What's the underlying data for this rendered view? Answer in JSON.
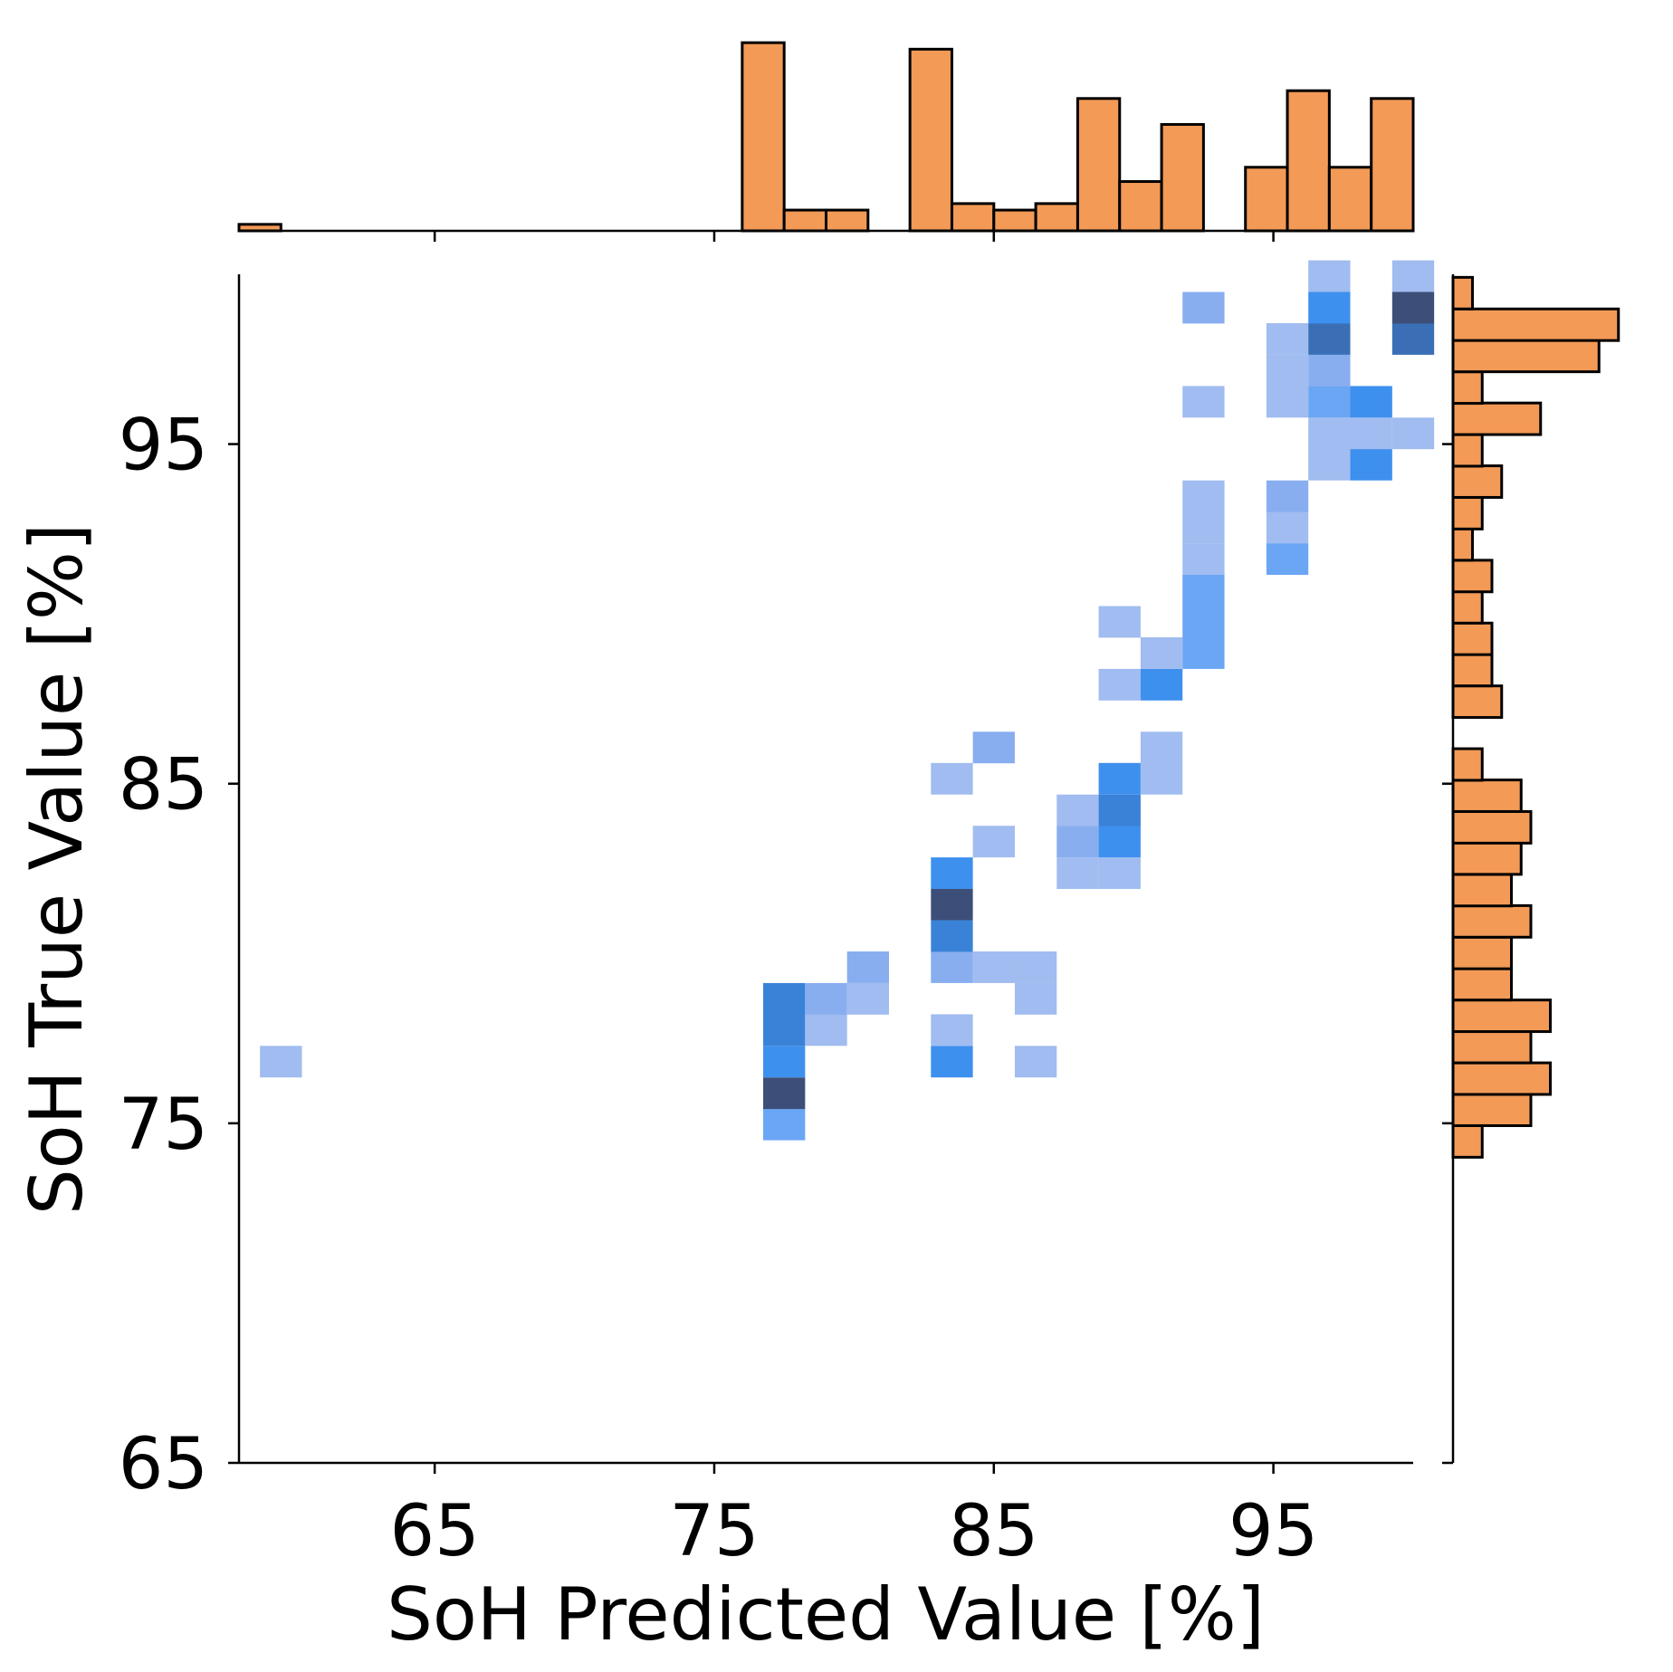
{
  "chart_data": [
    {
      "type": "heatmap",
      "xlabel": "SoH Predicted Value [%]",
      "ylabel": "SoH True Value [%]",
      "xlim": [
        58,
        100
      ],
      "ylim": [
        65,
        100
      ],
      "xticks": [
        65,
        75,
        85,
        95
      ],
      "yticks": [
        65,
        75,
        85,
        95
      ],
      "grid": false,
      "colors": {
        "light": "#a0bcf0",
        "mid_light": "#88aef0",
        "mid": "#6aa6f4",
        "bright": "#3e90ee",
        "strong": "#3a82d8",
        "dark": "#3a6fb6",
        "darkest": "#3d4f78"
      },
      "cells": [
        {
          "x": 58.75,
          "y": 76.35,
          "w": 1.5,
          "h": 0.93,
          "level": "light"
        },
        {
          "x": 76.75,
          "y": 74.5,
          "w": 1.5,
          "h": 0.93,
          "level": "mid"
        },
        {
          "x": 76.75,
          "y": 75.42,
          "w": 1.5,
          "h": 0.93,
          "level": "darkest"
        },
        {
          "x": 76.75,
          "y": 76.35,
          "w": 1.5,
          "h": 0.93,
          "level": "bright"
        },
        {
          "x": 76.75,
          "y": 77.28,
          "w": 1.5,
          "h": 0.93,
          "level": "strong"
        },
        {
          "x": 76.75,
          "y": 78.2,
          "w": 1.5,
          "h": 0.93,
          "level": "strong"
        },
        {
          "x": 78.25,
          "y": 77.28,
          "w": 1.5,
          "h": 0.93,
          "level": "light"
        },
        {
          "x": 78.25,
          "y": 78.2,
          "w": 1.5,
          "h": 0.93,
          "level": "mid_light"
        },
        {
          "x": 79.75,
          "y": 78.2,
          "w": 1.5,
          "h": 0.93,
          "level": "light"
        },
        {
          "x": 79.75,
          "y": 79.13,
          "w": 1.5,
          "h": 0.93,
          "level": "mid_light"
        },
        {
          "x": 82.75,
          "y": 76.35,
          "w": 1.5,
          "h": 0.93,
          "level": "bright"
        },
        {
          "x": 82.75,
          "y": 77.28,
          "w": 1.5,
          "h": 0.93,
          "level": "light"
        },
        {
          "x": 82.75,
          "y": 79.13,
          "w": 1.5,
          "h": 0.93,
          "level": "mid_light"
        },
        {
          "x": 82.75,
          "y": 80.05,
          "w": 1.5,
          "h": 0.93,
          "level": "strong"
        },
        {
          "x": 82.75,
          "y": 80.98,
          "w": 1.5,
          "h": 0.93,
          "level": "darkest"
        },
        {
          "x": 82.75,
          "y": 81.9,
          "w": 1.5,
          "h": 0.93,
          "level": "bright"
        },
        {
          "x": 82.75,
          "y": 84.68,
          "w": 1.5,
          "h": 0.93,
          "level": "light"
        },
        {
          "x": 84.25,
          "y": 79.13,
          "w": 1.5,
          "h": 0.93,
          "level": "light"
        },
        {
          "x": 84.25,
          "y": 82.83,
          "w": 1.5,
          "h": 0.93,
          "level": "light"
        },
        {
          "x": 84.25,
          "y": 85.6,
          "w": 1.5,
          "h": 0.93,
          "level": "mid_light"
        },
        {
          "x": 85.75,
          "y": 76.35,
          "w": 1.5,
          "h": 0.93,
          "level": "light"
        },
        {
          "x": 85.75,
          "y": 78.2,
          "w": 1.5,
          "h": 0.93,
          "level": "light"
        },
        {
          "x": 85.75,
          "y": 79.13,
          "w": 1.5,
          "h": 0.93,
          "level": "light"
        },
        {
          "x": 87.25,
          "y": 81.9,
          "w": 1.5,
          "h": 0.93,
          "level": "light"
        },
        {
          "x": 87.25,
          "y": 82.83,
          "w": 1.5,
          "h": 0.93,
          "level": "mid_light"
        },
        {
          "x": 87.25,
          "y": 83.75,
          "w": 1.5,
          "h": 0.93,
          "level": "light"
        },
        {
          "x": 88.75,
          "y": 81.9,
          "w": 1.5,
          "h": 0.93,
          "level": "light"
        },
        {
          "x": 88.75,
          "y": 82.83,
          "w": 1.5,
          "h": 0.93,
          "level": "bright"
        },
        {
          "x": 88.75,
          "y": 83.75,
          "w": 1.5,
          "h": 0.93,
          "level": "strong"
        },
        {
          "x": 88.75,
          "y": 84.68,
          "w": 1.5,
          "h": 0.93,
          "level": "bright"
        },
        {
          "x": 88.75,
          "y": 87.45,
          "w": 1.5,
          "h": 0.93,
          "level": "light"
        },
        {
          "x": 88.75,
          "y": 89.3,
          "w": 1.5,
          "h": 0.93,
          "level": "light"
        },
        {
          "x": 90.25,
          "y": 84.68,
          "w": 1.5,
          "h": 0.93,
          "level": "light"
        },
        {
          "x": 90.25,
          "y": 85.6,
          "w": 1.5,
          "h": 0.93,
          "level": "light"
        },
        {
          "x": 90.25,
          "y": 87.45,
          "w": 1.5,
          "h": 0.93,
          "level": "bright"
        },
        {
          "x": 90.25,
          "y": 88.38,
          "w": 1.5,
          "h": 0.93,
          "level": "light"
        },
        {
          "x": 91.75,
          "y": 88.38,
          "w": 1.5,
          "h": 0.93,
          "level": "mid"
        },
        {
          "x": 91.75,
          "y": 89.3,
          "w": 1.5,
          "h": 0.93,
          "level": "mid"
        },
        {
          "x": 91.75,
          "y": 90.23,
          "w": 1.5,
          "h": 0.93,
          "level": "mid"
        },
        {
          "x": 91.75,
          "y": 91.15,
          "w": 1.5,
          "h": 0.93,
          "level": "light"
        },
        {
          "x": 91.75,
          "y": 92.08,
          "w": 1.5,
          "h": 0.93,
          "level": "light"
        },
        {
          "x": 91.75,
          "y": 93.0,
          "w": 1.5,
          "h": 0.93,
          "level": "light"
        },
        {
          "x": 91.75,
          "y": 95.78,
          "w": 1.5,
          "h": 0.93,
          "level": "light"
        },
        {
          "x": 91.75,
          "y": 98.55,
          "w": 1.5,
          "h": 0.93,
          "level": "mid_light"
        },
        {
          "x": 94.75,
          "y": 91.15,
          "w": 1.5,
          "h": 0.93,
          "level": "mid"
        },
        {
          "x": 94.75,
          "y": 92.08,
          "w": 1.5,
          "h": 0.93,
          "level": "light"
        },
        {
          "x": 94.75,
          "y": 93.0,
          "w": 1.5,
          "h": 0.93,
          "level": "mid_light"
        },
        {
          "x": 94.75,
          "y": 95.78,
          "w": 1.5,
          "h": 0.93,
          "level": "light"
        },
        {
          "x": 94.75,
          "y": 96.7,
          "w": 1.5,
          "h": 0.93,
          "level": "light"
        },
        {
          "x": 94.75,
          "y": 97.63,
          "w": 1.5,
          "h": 0.93,
          "level": "light"
        },
        {
          "x": 96.25,
          "y": 93.93,
          "w": 1.5,
          "h": 0.93,
          "level": "light"
        },
        {
          "x": 96.25,
          "y": 94.85,
          "w": 1.5,
          "h": 0.93,
          "level": "light"
        },
        {
          "x": 96.25,
          "y": 95.78,
          "w": 1.5,
          "h": 0.93,
          "level": "mid"
        },
        {
          "x": 96.25,
          "y": 96.7,
          "w": 1.5,
          "h": 0.93,
          "level": "mid_light"
        },
        {
          "x": 96.25,
          "y": 97.63,
          "w": 1.5,
          "h": 0.93,
          "level": "dark"
        },
        {
          "x": 96.25,
          "y": 98.55,
          "w": 1.5,
          "h": 0.93,
          "level": "bright"
        },
        {
          "x": 96.25,
          "y": 99.48,
          "w": 1.5,
          "h": 0.93,
          "level": "light"
        },
        {
          "x": 97.75,
          "y": 93.93,
          "w": 1.5,
          "h": 0.93,
          "level": "bright"
        },
        {
          "x": 97.75,
          "y": 94.85,
          "w": 1.5,
          "h": 0.93,
          "level": "light"
        },
        {
          "x": 97.75,
          "y": 95.78,
          "w": 1.5,
          "h": 0.93,
          "level": "bright"
        },
        {
          "x": 99.25,
          "y": 94.85,
          "w": 1.5,
          "h": 0.93,
          "level": "light"
        },
        {
          "x": 99.25,
          "y": 97.63,
          "w": 1.5,
          "h": 0.93,
          "level": "dark"
        },
        {
          "x": 99.25,
          "y": 98.55,
          "w": 1.5,
          "h": 0.93,
          "level": "darkest"
        },
        {
          "x": 99.25,
          "y": 99.48,
          "w": 1.5,
          "h": 0.93,
          "level": "light"
        }
      ]
    },
    {
      "type": "bar",
      "orientation": "vertical",
      "role": "top marginal histogram (SoH Predicted Value)",
      "color": "#f29a56",
      "edgecolor": "#000000",
      "bin_width": 1.5,
      "bins_x_start": [
        58.0,
        76.0,
        77.5,
        79.0,
        82.0,
        83.5,
        85.0,
        86.5,
        88.0,
        89.5,
        91.0,
        94.0,
        95.5,
        97.0,
        98.5
      ],
      "counts": [
        0.5,
        14.5,
        1.6,
        1.6,
        14.0,
        2.1,
        1.6,
        2.1,
        10.2,
        3.8,
        8.2,
        4.9,
        10.8,
        4.9,
        10.2
      ]
    },
    {
      "type": "bar",
      "orientation": "horizontal",
      "role": "right marginal histogram (SoH True Value)",
      "color": "#f29a56",
      "edgecolor": "#000000",
      "bin_width": 0.93,
      "bins_y_start": [
        74.0,
        74.93,
        75.85,
        76.78,
        77.7,
        78.63,
        79.55,
        80.48,
        81.4,
        82.33,
        83.25,
        84.18,
        85.1,
        86.03,
        86.95,
        87.88,
        88.8,
        89.73,
        90.65,
        91.58,
        92.5,
        93.43,
        94.35,
        95.28,
        96.2,
        97.13,
        98.05,
        98.98
      ],
      "counts": [
        1.5,
        4.0,
        5.0,
        4.0,
        5.0,
        3.0,
        3.0,
        4.0,
        3.0,
        3.5,
        4.0,
        3.5,
        1.5,
        0.0,
        2.5,
        2.0,
        2.0,
        1.5,
        2.0,
        1.0,
        1.5,
        2.5,
        1.5,
        4.5,
        1.5,
        7.5,
        8.5,
        1.0
      ]
    }
  ]
}
